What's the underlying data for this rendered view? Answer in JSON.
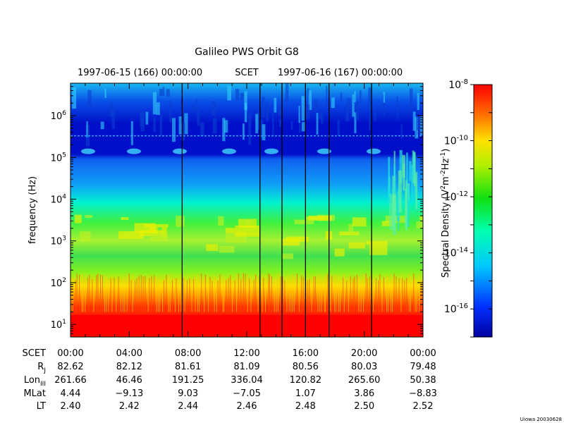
{
  "chart_data": {
    "type": "heatmap",
    "title": "Galileo PWS Orbit G8",
    "top_axis": {
      "label_left": "1997-06-15 (166) 00:00:00",
      "label_center": "SCET",
      "label_right": "1997-06-16 (167) 00:00:00"
    },
    "ylabel": "frequency (Hz)",
    "yscale": "log",
    "ylim": [
      5,
      6000000
    ],
    "y_tick_labels": [
      {
        "base": "10",
        "exp": "1",
        "value": 10
      },
      {
        "base": "10",
        "exp": "2",
        "value": 100
      },
      {
        "base": "10",
        "exp": "3",
        "value": 1000
      },
      {
        "base": "10",
        "exp": "4",
        "value": 10000
      },
      {
        "base": "10",
        "exp": "5",
        "value": 100000
      },
      {
        "base": "10",
        "exp": "6",
        "value": 1000000
      }
    ],
    "xlim_hours": [
      0,
      24
    ],
    "colorbar": {
      "label_main": "Spectral Density (V",
      "label_sup1": "2",
      "label_mid1": "m",
      "label_sup2": "-2",
      "label_mid2": "Hz",
      "label_sup3": "-1",
      "label_end": ")",
      "scale": "log",
      "range": [
        1e-17,
        1e-08
      ],
      "ticks": [
        {
          "base": "10",
          "exp": "-8",
          "value": 1e-08
        },
        {
          "base": "10",
          "exp": "-10",
          "value": 1e-10
        },
        {
          "base": "10",
          "exp": "-12",
          "value": 1e-12
        },
        {
          "base": "10",
          "exp": "-14",
          "value": 1e-14
        },
        {
          "base": "10",
          "exp": "-16",
          "value": 1e-16
        }
      ]
    },
    "event_markers_hours": [
      7.6,
      12.9,
      14.4,
      16.0,
      17.6,
      20.5
    ],
    "ephemeris": {
      "rows": [
        {
          "label": "SCET",
          "sub": "",
          "values": [
            "00:00",
            "04:00",
            "08:00",
            "12:00",
            "16:00",
            "20:00",
            "00:00"
          ]
        },
        {
          "label": "R",
          "sub": "J",
          "values": [
            "82.62",
            "82.12",
            "81.61",
            "81.09",
            "80.56",
            "80.03",
            "79.48"
          ]
        },
        {
          "label": "Lon",
          "sub": "III",
          "values": [
            "261.66",
            "46.46",
            "191.25",
            "336.04",
            "120.82",
            "265.60",
            "50.38"
          ]
        },
        {
          "label": "MLat",
          "sub": "",
          "values": [
            "4.44",
            "−9.13",
            "9.03",
            "−7.05",
            "1.07",
            "3.86",
            "−8.83"
          ]
        },
        {
          "label": "LT",
          "sub": "",
          "values": [
            "2.40",
            "2.42",
            "2.44",
            "2.46",
            "2.48",
            "2.50",
            "2.52"
          ]
        }
      ]
    },
    "footer": "Uiowa 20030628"
  }
}
